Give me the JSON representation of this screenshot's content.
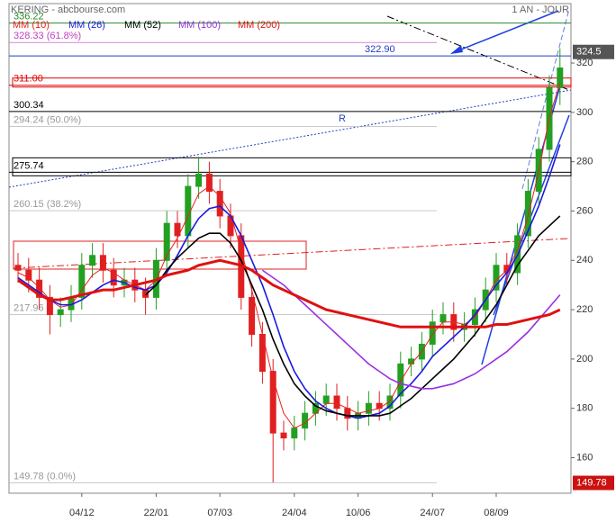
{
  "chart_data": {
    "type": "candlestick",
    "title": "KERING - abcbourse.com",
    "subtitle": "1 AN - JOUR",
    "annotations": [
      "R"
    ],
    "categories": [
      null,
      null,
      null,
      null,
      null,
      null,
      "04/12",
      null,
      null,
      null,
      null,
      null,
      null,
      "22/01",
      null,
      null,
      null,
      null,
      null,
      "07/03",
      null,
      null,
      null,
      null,
      null,
      null,
      "24/04",
      null,
      null,
      null,
      null,
      null,
      "10/06",
      null,
      null,
      null,
      null,
      null,
      null,
      "24/07",
      null,
      null,
      null,
      null,
      null,
      "08/09",
      null,
      null,
      null,
      null,
      null,
      null
    ],
    "open": [
      238,
      236,
      232,
      225,
      218,
      220,
      225,
      238,
      242,
      236,
      230,
      232,
      228,
      225,
      240,
      255,
      250,
      270,
      275,
      268,
      258,
      250,
      225,
      210,
      195,
      170,
      168,
      172,
      178,
      182,
      185,
      180,
      176,
      178,
      182,
      180,
      185,
      198,
      200,
      206,
      215,
      218,
      212,
      214,
      220,
      228,
      238,
      235,
      250,
      268,
      285,
      310
    ],
    "high": [
      243,
      241,
      237,
      230,
      225,
      230,
      243,
      247,
      247,
      241,
      237,
      237,
      233,
      245,
      260,
      260,
      275,
      282,
      280,
      273,
      263,
      255,
      230,
      215,
      200,
      175,
      177,
      183,
      187,
      190,
      190,
      185,
      183,
      187,
      187,
      190,
      203,
      205,
      211,
      220,
      223,
      223,
      219,
      225,
      233,
      243,
      243,
      255,
      273,
      290,
      315,
      326
    ],
    "low": [
      231,
      227,
      220,
      210,
      213,
      215,
      220,
      233,
      231,
      225,
      225,
      223,
      218,
      220,
      235,
      245,
      245,
      265,
      263,
      253,
      245,
      220,
      205,
      190,
      150,
      163,
      163,
      167,
      173,
      177,
      175,
      171,
      171,
      173,
      175,
      175,
      180,
      193,
      195,
      201,
      210,
      207,
      207,
      209,
      215,
      223,
      230,
      230,
      245,
      263,
      280,
      303
    ],
    "close": [
      236,
      232,
      225,
      218,
      220,
      225,
      238,
      242,
      236,
      230,
      232,
      228,
      225,
      240,
      255,
      250,
      270,
      275,
      268,
      258,
      250,
      225,
      210,
      195,
      170,
      168,
      172,
      178,
      182,
      185,
      180,
      176,
      178,
      182,
      180,
      185,
      198,
      200,
      206,
      215,
      218,
      212,
      214,
      220,
      228,
      238,
      235,
      250,
      268,
      285,
      310,
      318
    ],
    "up_color": "#22a022",
    "down_color": "#e02020",
    "series": [
      {
        "name": "MM (10)",
        "color": "#e82020",
        "values": [
          235,
          233,
          229,
          224,
          221,
          222,
          228,
          234,
          237,
          235,
          232,
          230,
          228,
          232,
          242,
          249,
          258,
          267,
          270,
          266,
          259,
          244,
          228,
          210,
          192,
          178,
          172,
          174,
          178,
          182,
          182,
          180,
          178,
          179,
          180,
          183,
          191,
          198,
          203,
          210,
          215,
          215,
          214,
          217,
          224,
          232,
          236,
          244,
          258,
          276,
          298,
          312
        ]
      },
      {
        "name": "MM (26)",
        "color": "#1a1ae0",
        "values": [
          233,
          230,
          227,
          224,
          222,
          222,
          224,
          227,
          230,
          232,
          231,
          229,
          228,
          230,
          235,
          242,
          250,
          257,
          261,
          262,
          258,
          250,
          240,
          230,
          218,
          205,
          195,
          188,
          183,
          180,
          178,
          177,
          176,
          177,
          178,
          181,
          186,
          190,
          195,
          201,
          205,
          209,
          213,
          218,
          224,
          230,
          235,
          242,
          252,
          262,
          274,
          287
        ]
      },
      {
        "name": "MM (52)",
        "color": "#000000",
        "values": [
          null,
          null,
          null,
          null,
          null,
          null,
          null,
          null,
          null,
          null,
          null,
          null,
          226,
          230,
          236,
          241,
          245,
          249,
          251,
          251,
          247,
          240,
          230,
          220,
          208,
          198,
          190,
          185,
          181,
          179,
          178,
          177,
          177,
          177,
          177,
          178,
          181,
          184,
          188,
          192,
          196,
          200,
          205,
          210,
          216,
          222,
          230,
          238,
          244,
          250,
          254,
          258
        ]
      },
      {
        "name": "MM (100)",
        "color": "#9a30e0",
        "values": [
          null,
          null,
          null,
          null,
          null,
          null,
          null,
          null,
          null,
          null,
          null,
          null,
          null,
          null,
          null,
          null,
          null,
          null,
          null,
          null,
          null,
          null,
          null,
          236,
          233,
          230,
          226,
          222,
          218,
          214,
          210,
          206,
          202,
          198,
          195,
          192,
          190,
          189,
          188,
          188,
          189,
          190,
          192,
          194,
          197,
          200,
          203,
          207,
          211,
          216,
          221,
          226
        ]
      },
      {
        "name": "MM (200)",
        "color": "#e01010",
        "values": [
          232,
          229,
          226,
          224,
          224,
          225,
          226,
          227,
          228,
          228,
          229,
          230,
          231,
          232,
          234,
          235,
          236,
          238,
          239,
          240,
          239,
          238,
          236,
          233,
          230,
          228,
          226,
          224,
          222,
          220,
          219,
          218,
          217,
          216,
          215,
          214,
          213,
          213,
          213,
          213,
          213,
          213,
          213,
          213,
          213,
          214,
          214,
          215,
          216,
          217,
          218,
          220
        ]
      }
    ],
    "levels": [
      {
        "value": 336.22,
        "label": "336.22",
        "color": "#2a8a2a",
        "style": "line"
      },
      {
        "value": 328.33,
        "label": "328.33 (61.8%)",
        "color": "#c040c0",
        "style": "fib"
      },
      {
        "value": 322.9,
        "label": "322.90",
        "color": "#2040c0",
        "style": "line"
      },
      {
        "value": 311,
        "label": "311.00",
        "color": "#e00000",
        "style": "box"
      },
      {
        "value": 300.34,
        "label": "300.34",
        "color": "#000000",
        "style": "line"
      },
      {
        "value": 294.24,
        "label": "294.24 (50.0%)",
        "color": "#aaaaaa",
        "style": "fib"
      },
      {
        "value": 275.74,
        "label": "275.74",
        "color": "#000000",
        "style": "box"
      },
      {
        "value": 260.15,
        "label": "260.15 (38.2%)",
        "color": "#aaaaaa",
        "style": "fib"
      },
      {
        "value": 217.96,
        "label": "217.96",
        "color": "#aaaaaa",
        "style": "fib"
      },
      {
        "value": 149.78,
        "label": "149.78 (0.0%)",
        "color": "#aaaaaa",
        "style": "fib"
      }
    ],
    "tags": [
      {
        "value": 324.5,
        "color": "#555555"
      },
      {
        "value": 149.78,
        "color": "#cc1111"
      }
    ],
    "ylim": [
      145.6,
      344.1
    ],
    "yticks": [
      160,
      180,
      200,
      220,
      240,
      260,
      280,
      300,
      320
    ]
  }
}
